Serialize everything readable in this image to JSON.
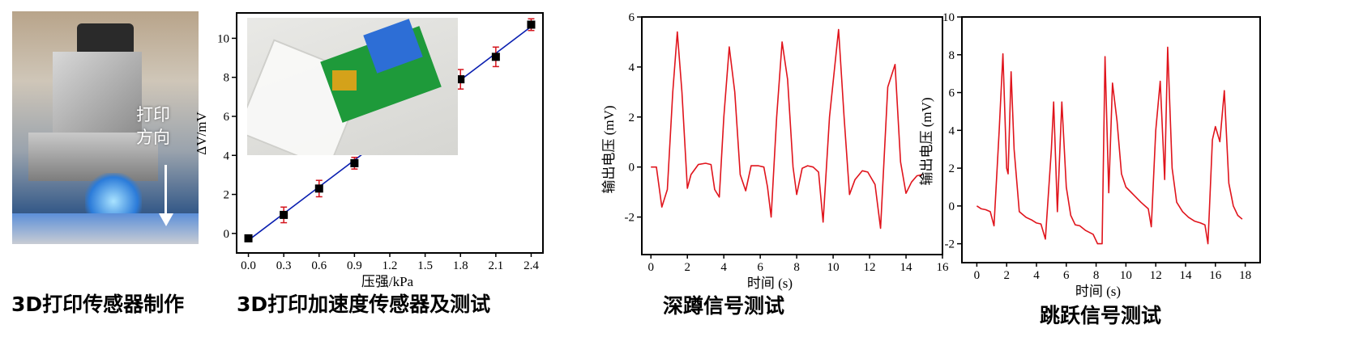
{
  "captions": [
    "3D打印传感器制作",
    "3D打印加速度传感器及测试",
    "深蹲信号测试",
    "跳跃信号测试"
  ],
  "photo_annotation": {
    "line1": "打印",
    "line2": "方向"
  },
  "colors": {
    "line_red": "#e0141c",
    "fit_blue": "#0a1fb0",
    "errbar_red": "#d4141c",
    "marker": "#000000"
  },
  "chart_data": [
    {
      "type": "scatter",
      "title": "",
      "xlabel": "压强/kPa",
      "ylabel": "ΔV/mV",
      "xlim": [
        -0.1,
        2.5
      ],
      "ylim": [
        -1,
        11.3
      ],
      "xticks": [
        "0.0",
        "0.3",
        "0.6",
        "0.9",
        "1.2",
        "1.5",
        "1.8",
        "2.1",
        "2.4"
      ],
      "yticks": [
        "0",
        "2",
        "4",
        "6",
        "8",
        "10"
      ],
      "x": [
        0.0,
        0.3,
        0.6,
        0.9,
        1.2,
        1.8,
        2.1,
        2.4
      ],
      "y": [
        -0.25,
        0.95,
        2.3,
        3.6,
        4.4,
        7.9,
        9.05,
        10.7
      ],
      "error": [
        0.12,
        0.4,
        0.42,
        0.3,
        0.25,
        0.5,
        0.5,
        0.3
      ],
      "fit": {
        "x": [
          0.0,
          2.4
        ],
        "y": [
          -0.35,
          10.6
        ]
      },
      "grid": false
    },
    {
      "type": "line",
      "title": "",
      "xlabel": "时间 (s)",
      "ylabel": "输出电压 (mV)",
      "xlim": [
        -0.5,
        16
      ],
      "ylim": [
        -3.5,
        6
      ],
      "xticks": [
        "0",
        "2",
        "4",
        "6",
        "8",
        "10",
        "12",
        "14",
        "16"
      ],
      "yticks": [
        "-2",
        "0",
        "2",
        "4",
        "6"
      ],
      "x": [
        0,
        0.3,
        0.6,
        0.9,
        1.2,
        1.45,
        1.7,
        2.0,
        2.2,
        2.6,
        3.0,
        3.3,
        3.5,
        3.75,
        4.0,
        4.3,
        4.6,
        4.9,
        5.2,
        5.5,
        5.9,
        6.2,
        6.4,
        6.6,
        6.9,
        7.2,
        7.5,
        7.8,
        8.0,
        8.3,
        8.6,
        8.9,
        9.2,
        9.45,
        9.8,
        10.3,
        10.6,
        10.9,
        11.2,
        11.6,
        11.9,
        12.3,
        12.6,
        13.0,
        13.4,
        13.7,
        14.0,
        14.3,
        14.6,
        14.9
      ],
      "y": [
        0,
        0,
        -1.6,
        -0.9,
        3,
        5.4,
        3,
        -0.85,
        -0.3,
        0.1,
        0.15,
        0.1,
        -0.9,
        -1.2,
        2,
        4.8,
        3,
        -0.3,
        -0.95,
        0.05,
        0.05,
        0,
        -0.8,
        -2,
        2,
        5,
        3.5,
        0,
        -1.1,
        -0.05,
        0.05,
        0,
        -0.2,
        -2.2,
        2,
        5.5,
        2,
        -1.1,
        -0.5,
        -0.15,
        -0.2,
        -0.7,
        -2.45,
        3.2,
        4.1,
        0.2,
        -1.05,
        -0.6,
        -0.35,
        -0.3
      ],
      "grid": false
    },
    {
      "type": "line",
      "title": "",
      "xlabel": "时间 (s)",
      "ylabel": "输出电压 (mV)",
      "xlim": [
        -1,
        19
      ],
      "ylim": [
        -3,
        10
      ],
      "xticks": [
        "0",
        "2",
        "4",
        "6",
        "8",
        "10",
        "12",
        "14",
        "16",
        "18"
      ],
      "yticks": [
        "-2",
        "0",
        "2",
        "4",
        "6",
        "8",
        "10"
      ],
      "x": [
        0,
        0.3,
        0.6,
        0.9,
        1.15,
        1.5,
        1.75,
        2.0,
        2.1,
        2.3,
        2.5,
        2.85,
        3.3,
        3.7,
        4.0,
        4.3,
        4.6,
        5.0,
        5.15,
        5.4,
        5.7,
        6.0,
        6.3,
        6.6,
        6.9,
        7.3,
        7.8,
        8.1,
        8.4,
        8.6,
        8.85,
        9.1,
        9.4,
        9.7,
        10.0,
        10.5,
        11.0,
        11.5,
        11.7,
        12.0,
        12.3,
        12.6,
        12.8,
        13.1,
        13.4,
        13.8,
        14.2,
        14.6,
        15.0,
        15.3,
        15.5,
        15.8,
        16.0,
        16.3,
        16.6,
        16.9,
        17.2,
        17.5,
        17.8
      ],
      "y": [
        0,
        -0.15,
        -0.2,
        -0.3,
        -1.05,
        4,
        8.05,
        2,
        1.7,
        7.1,
        3,
        -0.3,
        -0.6,
        -0.75,
        -0.9,
        -0.95,
        -1.75,
        3,
        5.5,
        -0.3,
        5.5,
        1,
        -0.5,
        -1,
        -1.05,
        -1.3,
        -1.5,
        -2,
        -2,
        7.9,
        0.7,
        6.5,
        4.5,
        1.7,
        1,
        0.6,
        0.2,
        -0.15,
        -1.1,
        4,
        6.6,
        1.4,
        8.4,
        2,
        0.2,
        -0.3,
        -0.6,
        -0.8,
        -0.9,
        -1.0,
        -2.0,
        3.5,
        4.2,
        3.4,
        6.1,
        1.2,
        0,
        -0.5,
        -0.7
      ],
      "grid": false
    }
  ]
}
